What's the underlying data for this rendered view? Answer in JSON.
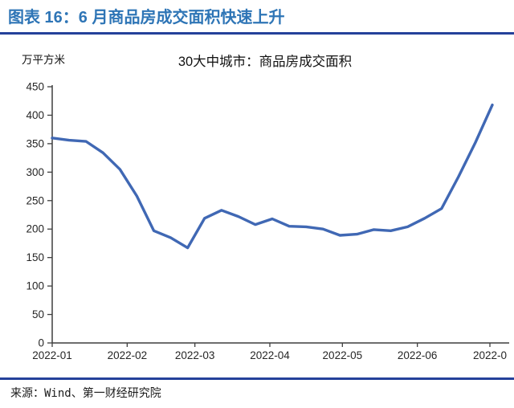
{
  "header": {
    "title": "图表 16：6 月商品房成交面积快速上升"
  },
  "footer": {
    "source": "来源：Wind、第一财经研究院"
  },
  "colors": {
    "header_text": "#2E75B6",
    "divider": "#24419A",
    "line": "#4068B4",
    "axis": "#3F3F3F",
    "tick_text": "#262626"
  },
  "chart_data": {
    "type": "line",
    "title": "30大中城市：商品房成交面积",
    "unit_label": "万平方米",
    "xlabel": "",
    "ylabel": "万平方米",
    "ylim": [
      0,
      450
    ],
    "y_step": 50,
    "grid": false,
    "legend_position": "none",
    "x_ticks": [
      {
        "label": "2022-01",
        "day": 0
      },
      {
        "label": "2022-02",
        "day": 31
      },
      {
        "label": "2022-03",
        "day": 59
      },
      {
        "label": "2022-04",
        "day": 90
      },
      {
        "label": "2022-05",
        "day": 120
      },
      {
        "label": "2022-06",
        "day": 151
      },
      {
        "label": "2022-0",
        "day": 181
      }
    ],
    "series": [
      {
        "name": "30大中城市：商品房成交面积",
        "color": "#4068B4",
        "x": [
          "2022-01-01",
          "2022-01-08",
          "2022-01-15",
          "2022-01-22",
          "2022-01-29",
          "2022-02-05",
          "2022-02-12",
          "2022-02-19",
          "2022-02-26",
          "2022-03-05",
          "2022-03-12",
          "2022-03-19",
          "2022-03-26",
          "2022-04-02",
          "2022-04-09",
          "2022-04-16",
          "2022-04-23",
          "2022-04-30",
          "2022-05-07",
          "2022-05-14",
          "2022-05-21",
          "2022-05-28",
          "2022-06-04",
          "2022-06-11",
          "2022-06-18",
          "2022-06-25",
          "2022-07-02"
        ],
        "values": [
          360,
          356,
          354,
          334,
          305,
          258,
          197,
          185,
          167,
          219,
          233,
          222,
          208,
          218,
          205,
          204,
          200,
          189,
          191,
          199,
          197,
          204,
          219,
          236,
          292,
          352,
          418
        ]
      }
    ]
  }
}
